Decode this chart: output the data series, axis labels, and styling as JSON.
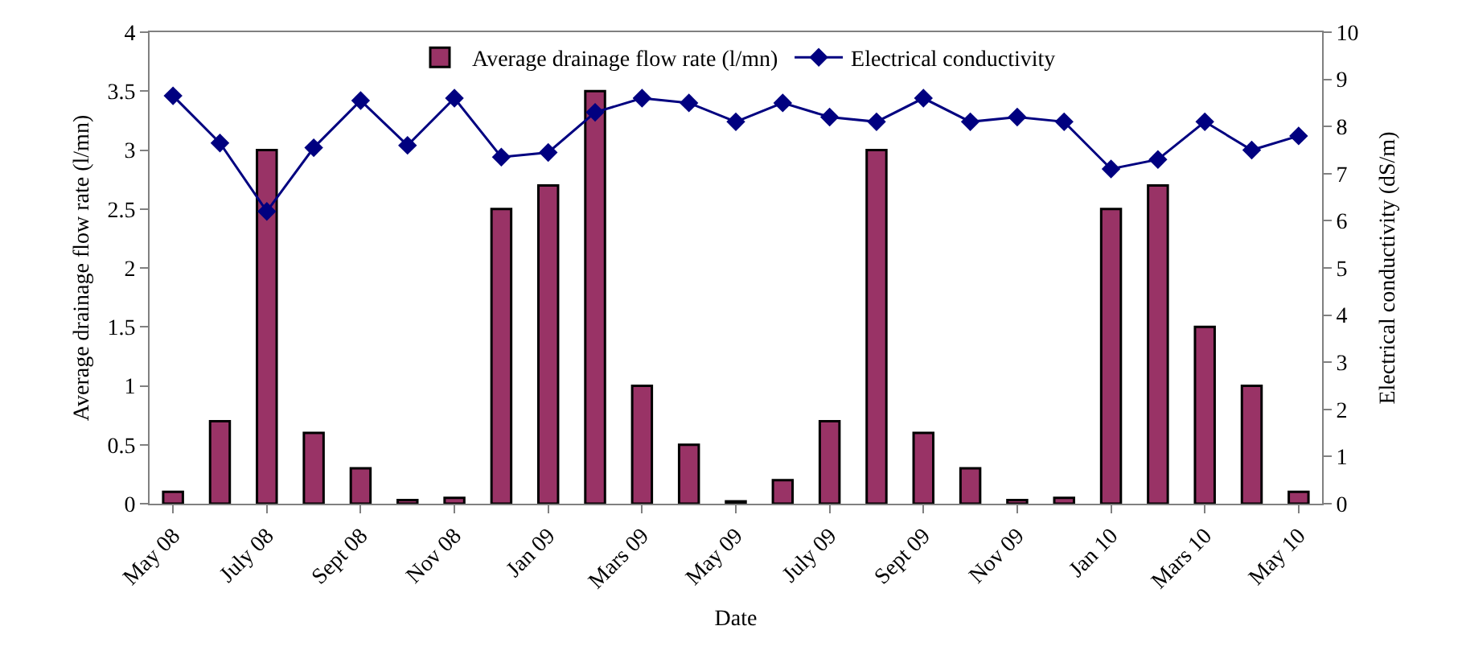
{
  "chart_data": {
    "type": "bar",
    "xlabel": "Date",
    "ylabel": "Average drainage flow rate (l/mn)",
    "y2label": "Electrical conductivity (dS/m)",
    "categories": [
      "May 08",
      null,
      "July 08",
      null,
      "Sept 08",
      null,
      "Nov 08",
      null,
      "Jan 09",
      null,
      "Mars 09",
      null,
      "May 09",
      null,
      "July 09",
      null,
      "Sept 09",
      null,
      "Nov 09",
      null,
      "Jan 10",
      null,
      "Mars 10",
      null,
      "May 10"
    ],
    "series": [
      {
        "name": "Average drainage flow rate (l/mn)",
        "color": "#993366",
        "values": [
          0.1,
          0.7,
          3.0,
          0.6,
          0.3,
          0.03,
          0.05,
          2.5,
          2.7,
          3.5,
          1.0,
          0.5,
          0.02,
          0.2,
          0.7,
          3.0,
          0.6,
          0.3,
          0.03,
          0.05,
          2.5,
          2.7,
          1.5,
          1.0,
          0.1
        ]
      },
      {
        "name": "Electrical conductivity",
        "type": "line",
        "axis": "y2",
        "color": "#000080",
        "marker": "diamond",
        "values": [
          8.65,
          7.65,
          6.2,
          7.55,
          8.55,
          7.6,
          8.6,
          7.35,
          7.45,
          8.3,
          8.6,
          8.5,
          8.1,
          8.5,
          8.2,
          8.1,
          8.6,
          8.1,
          8.2,
          8.1,
          7.1,
          7.3,
          8.1,
          7.5,
          7.8
        ]
      }
    ],
    "ylim": [
      0,
      4
    ],
    "yticks": [
      0,
      0.5,
      1,
      1.5,
      2,
      2.5,
      3,
      3.5,
      4
    ],
    "y2lim": [
      0,
      10
    ],
    "y2ticks": [
      0,
      1,
      2,
      3,
      4,
      5,
      6,
      7,
      8,
      9,
      10
    ],
    "grid": false,
    "legend": "top"
  }
}
